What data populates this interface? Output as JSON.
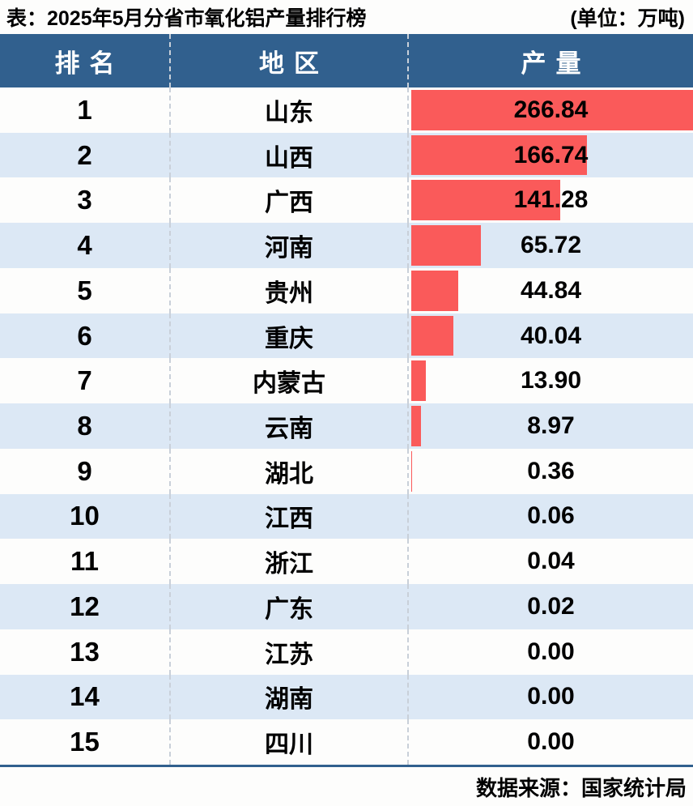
{
  "title": {
    "left": "表：2025年5月分省市氧化铝产量排行榜",
    "right": "(单位：万吨)"
  },
  "table": {
    "columns": [
      "排名",
      "地区",
      "产量"
    ],
    "rows": [
      {
        "rank": "1",
        "region": "山东",
        "value": "266.84"
      },
      {
        "rank": "2",
        "region": "山西",
        "value": "166.74"
      },
      {
        "rank": "3",
        "region": "广西",
        "value": "141.28"
      },
      {
        "rank": "4",
        "region": "河南",
        "value": "65.72"
      },
      {
        "rank": "5",
        "region": "贵州",
        "value": "44.84"
      },
      {
        "rank": "6",
        "region": "重庆",
        "value": "40.04"
      },
      {
        "rank": "7",
        "region": "内蒙古",
        "value": "13.90"
      },
      {
        "rank": "8",
        "region": "云南",
        "value": "8.97"
      },
      {
        "rank": "9",
        "region": "湖北",
        "value": "0.36"
      },
      {
        "rank": "10",
        "region": "江西",
        "value": "0.06"
      },
      {
        "rank": "11",
        "region": "浙江",
        "value": "0.04"
      },
      {
        "rank": "12",
        "region": "广东",
        "value": "0.02"
      },
      {
        "rank": "13",
        "region": "江苏",
        "value": "0.00"
      },
      {
        "rank": "14",
        "region": "湖南",
        "value": "0.00"
      },
      {
        "rank": "15",
        "region": "四川",
        "value": "0.00"
      }
    ],
    "max_value": 266.84
  },
  "footer": {
    "source": "数据来源：国家统计局"
  },
  "colors": {
    "header_bg": "#31608E",
    "row_alt_bg": "#DCE8F5",
    "row_bg": "#FDFDFC",
    "bar": "#FA5A5A",
    "divider_line": "#31608E",
    "column_separator": "#C9D0D9",
    "header_text": "#FFFFFF",
    "body_text": "#000000"
  },
  "chart_data": {
    "type": "bar",
    "title": "2025年5月分省市氧化铝产量排行榜",
    "subtitle": "单位：万吨",
    "categories": [
      "山东",
      "山西",
      "广西",
      "河南",
      "贵州",
      "重庆",
      "内蒙古",
      "云南",
      "湖北",
      "江西",
      "浙江",
      "广东",
      "江苏",
      "湖南",
      "四川"
    ],
    "values": [
      266.84,
      166.74,
      141.28,
      65.72,
      44.84,
      40.04,
      13.9,
      8.97,
      0.36,
      0.06,
      0.04,
      0.02,
      0.0,
      0.0,
      0.0
    ],
    "xlabel": "产量",
    "ylabel": "地区",
    "xlim": [
      0,
      266.84
    ],
    "legend": "off",
    "grid": "off",
    "annotation": "数据来源：国家统计局"
  }
}
